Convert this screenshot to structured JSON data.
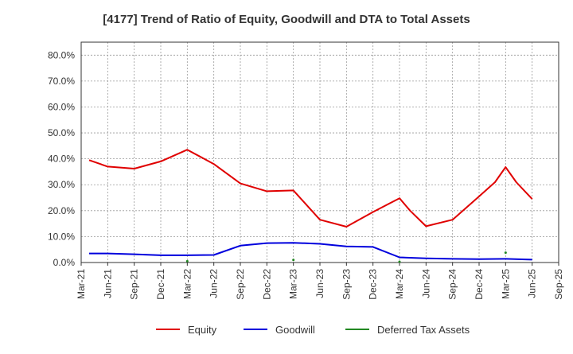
{
  "chart_data": {
    "type": "line",
    "title": "[4177]  Trend of Ratio of Equity, Goodwill and DTA to Total Assets",
    "x": [
      "Mar-21",
      "Jun-21",
      "Sep-21",
      "Dec-21",
      "Mar-22",
      "Jun-22",
      "Sep-22",
      "Dec-22",
      "Mar-23",
      "Jun-23",
      "Sep-23",
      "Dec-23",
      "Mar-24",
      "Jun-24",
      "Sep-24",
      "Dec-24",
      "Mar-25",
      "Jun-25",
      "Sep-25"
    ],
    "ylim": [
      0,
      85
    ],
    "yticks": [
      "0.0%",
      "10.0%",
      "20.0%",
      "30.0%",
      "40.0%",
      "50.0%",
      "60.0%",
      "70.0%",
      "80.0%"
    ],
    "grid": true,
    "legend_position": "bottom",
    "series": [
      {
        "name": "Equity",
        "color": "#e00000",
        "points": [
          [
            0.3,
            39.5
          ],
          [
            1,
            37
          ],
          [
            2,
            36.2
          ],
          [
            3,
            39
          ],
          [
            4,
            43.5
          ],
          [
            5,
            38
          ],
          [
            6,
            30.5
          ],
          [
            7,
            27.5
          ],
          [
            8,
            27.8
          ],
          [
            9,
            16.5
          ],
          [
            10,
            13.8
          ],
          [
            11,
            19.5
          ],
          [
            12,
            24.8
          ],
          [
            12.4,
            20
          ],
          [
            13,
            14
          ],
          [
            14,
            16.5
          ],
          [
            15,
            25.5
          ],
          [
            15.6,
            31
          ],
          [
            16,
            36.8
          ],
          [
            16.4,
            31
          ],
          [
            17,
            24.5
          ]
        ]
      },
      {
        "name": "Goodwill",
        "color": "#0000dd",
        "points": [
          [
            0.3,
            3.5
          ],
          [
            1,
            3.5
          ],
          [
            2,
            3.2
          ],
          [
            3,
            2.8
          ],
          [
            4,
            2.8
          ],
          [
            5,
            2.9
          ],
          [
            6,
            6.5
          ],
          [
            7,
            7.5
          ],
          [
            8,
            7.6
          ],
          [
            9,
            7.2
          ],
          [
            10,
            6.2
          ],
          [
            11,
            6
          ],
          [
            12,
            2
          ],
          [
            13,
            1.6
          ],
          [
            14,
            1.4
          ],
          [
            15,
            1.3
          ],
          [
            16,
            1.4
          ],
          [
            17,
            1.1
          ]
        ]
      },
      {
        "name": "Deferred Tax Assets",
        "color": "#228822",
        "points": [
          [
            4,
            0.5
          ],
          [
            8,
            1.0
          ],
          [
            12,
            0.3
          ],
          [
            16,
            3.8
          ]
        ]
      }
    ]
  }
}
